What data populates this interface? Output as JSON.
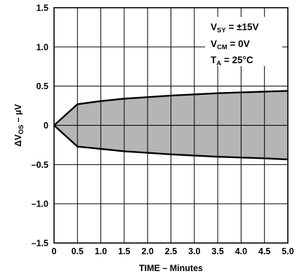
{
  "chart_data": {
    "type": "area",
    "xlabel": "TIME – Minutes",
    "ylabel": {
      "delta": "ΔV",
      "sub": "OS",
      "rest": " – µV"
    },
    "xlim": [
      0,
      5
    ],
    "ylim": [
      -1.5,
      1.5
    ],
    "xticks": [
      "0",
      "0.5",
      "1.0",
      "1.5",
      "2.0",
      "2.5",
      "3.0",
      "3.5",
      "4.0",
      "4.5",
      "5.0"
    ],
    "yticks": [
      "1.5",
      "1.0",
      "0.5",
      "0",
      "–0.5",
      "–1.0",
      "–1.5"
    ],
    "grid": true,
    "annotations": [
      {
        "main": "V",
        "sub": "SY",
        "rest": " = ±15V"
      },
      {
        "main": "V",
        "sub": "CM",
        "rest": " = 0V"
      },
      {
        "main": "T",
        "sub": "A",
        "rest": " = 25°C"
      }
    ],
    "fill_color": "#b5b5b5",
    "series": [
      {
        "x": [
          0,
          0.5,
          1.0,
          1.5,
          2.0,
          2.5,
          3.0,
          3.5,
          4.0,
          4.5,
          5.0
        ],
        "values": [
          0,
          0.27,
          0.31,
          0.34,
          0.36,
          0.38,
          0.395,
          0.41,
          0.42,
          0.43,
          0.44
        ]
      },
      {
        "x": [
          0,
          0.5,
          1.0,
          1.5,
          2.0,
          2.5,
          3.0,
          3.5,
          4.0,
          4.5,
          5.0
        ],
        "values": [
          0,
          -0.27,
          -0.3,
          -0.33,
          -0.35,
          -0.37,
          -0.385,
          -0.4,
          -0.41,
          -0.42,
          -0.435
        ]
      }
    ]
  }
}
